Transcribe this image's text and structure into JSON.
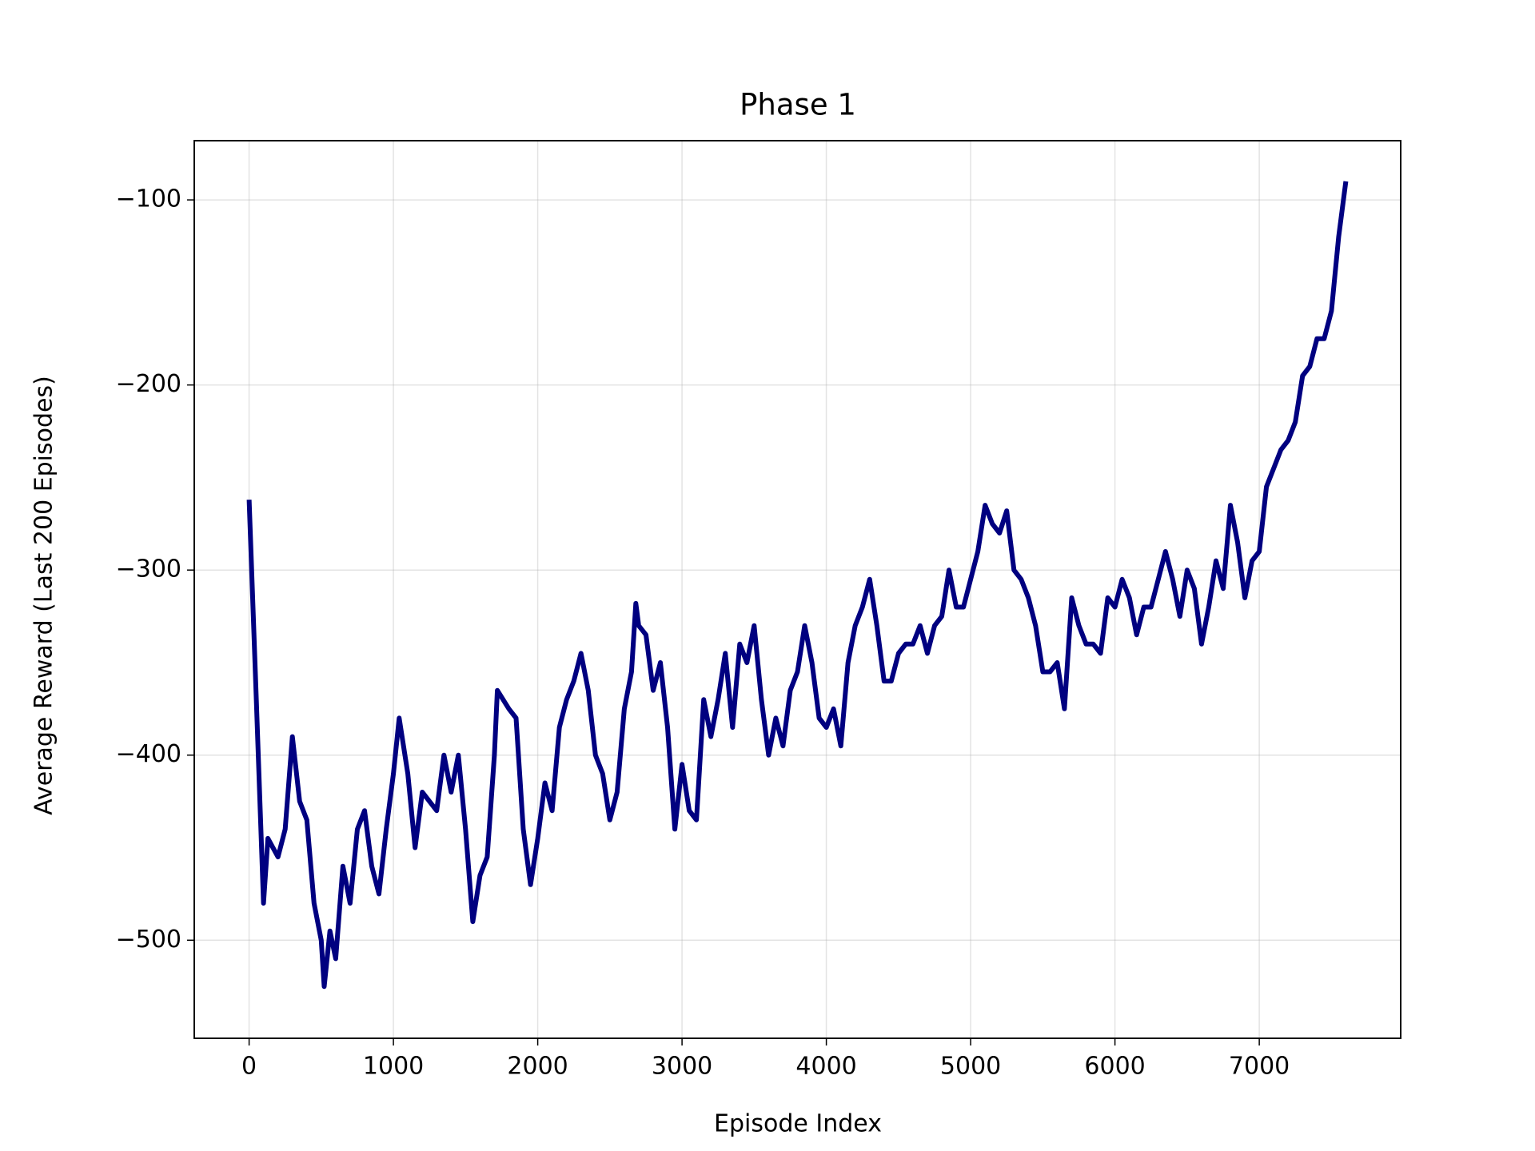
{
  "chart_data": {
    "type": "line",
    "title": "Phase 1",
    "x_label": "Episode Index",
    "y_label": "Average Reward (Last 200 Episodes)",
    "color": "#000080",
    "grid": true,
    "xlim": [
      -380,
      7980
    ],
    "xticks": [
      0,
      1000,
      2000,
      3000,
      4000,
      5000,
      6000,
      7000
    ],
    "ylim": [
      -553,
      -68
    ],
    "yticks": [
      {
        "value": -500,
        "label": "−500"
      },
      {
        "value": -400,
        "label": "−400"
      },
      {
        "value": -300,
        "label": "−300"
      },
      {
        "value": -200,
        "label": "−200"
      },
      {
        "value": -100,
        "label": "−100"
      }
    ],
    "x": [
      0,
      50,
      100,
      130,
      200,
      250,
      300,
      350,
      400,
      450,
      500,
      520,
      560,
      600,
      650,
      700,
      750,
      800,
      850,
      900,
      950,
      1000,
      1040,
      1100,
      1150,
      1200,
      1300,
      1350,
      1400,
      1450,
      1500,
      1550,
      1600,
      1650,
      1700,
      1720,
      1800,
      1850,
      1900,
      1950,
      2000,
      2050,
      2100,
      2150,
      2200,
      2250,
      2300,
      2350,
      2400,
      2450,
      2500,
      2550,
      2600,
      2650,
      2680,
      2700,
      2750,
      2800,
      2850,
      2900,
      2950,
      3000,
      3050,
      3100,
      3150,
      3200,
      3250,
      3300,
      3350,
      3400,
      3450,
      3500,
      3550,
      3600,
      3650,
      3700,
      3750,
      3800,
      3850,
      3900,
      3950,
      4000,
      4050,
      4100,
      4150,
      4200,
      4250,
      4300,
      4350,
      4400,
      4450,
      4500,
      4550,
      4600,
      4650,
      4700,
      4750,
      4800,
      4850,
      4900,
      4950,
      5000,
      5050,
      5100,
      5150,
      5200,
      5250,
      5300,
      5350,
      5400,
      5450,
      5500,
      5550,
      5600,
      5650,
      5700,
      5750,
      5800,
      5850,
      5900,
      5950,
      6000,
      6050,
      6100,
      6150,
      6200,
      6250,
      6300,
      6350,
      6400,
      6450,
      6500,
      6550,
      6600,
      6650,
      6700,
      6750,
      6800,
      6850,
      6900,
      6950,
      7000,
      7050,
      7100,
      7150,
      7200,
      7250,
      7300,
      7350,
      7400,
      7450,
      7500,
      7550,
      7600
    ],
    "values": [
      -262,
      -370,
      -480,
      -445,
      -455,
      -440,
      -390,
      -425,
      -435,
      -480,
      -500,
      -525,
      -495,
      -510,
      -460,
      -480,
      -440,
      -430,
      -460,
      -475,
      -440,
      -410,
      -380,
      -410,
      -450,
      -420,
      -430,
      -400,
      -420,
      -400,
      -440,
      -490,
      -465,
      -455,
      -400,
      -365,
      -375,
      -380,
      -440,
      -470,
      -445,
      -415,
      -430,
      -385,
      -370,
      -360,
      -345,
      -365,
      -400,
      -410,
      -435,
      -420,
      -375,
      -355,
      -318,
      -330,
      -335,
      -365,
      -350,
      -385,
      -440,
      -405,
      -430,
      -435,
      -370,
      -390,
      -370,
      -345,
      -385,
      -340,
      -350,
      -330,
      -370,
      -400,
      -380,
      -395,
      -365,
      -355,
      -330,
      -350,
      -380,
      -385,
      -375,
      -395,
      -350,
      -330,
      -320,
      -305,
      -330,
      -360,
      -360,
      -345,
      -340,
      -340,
      -330,
      -345,
      -330,
      -325,
      -300,
      -320,
      -320,
      -305,
      -290,
      -265,
      -275,
      -280,
      -268,
      -300,
      -305,
      -315,
      -330,
      -355,
      -355,
      -350,
      -375,
      -315,
      -330,
      -340,
      -340,
      -345,
      -315,
      -320,
      -305,
      -315,
      -335,
      -320,
      -320,
      -305,
      -290,
      -305,
      -325,
      -300,
      -310,
      -340,
      -320,
      -295,
      -310,
      -265,
      -285,
      -315,
      -295,
      -290,
      -255,
      -245,
      -235,
      -230,
      -220,
      -195,
      -190,
      -175,
      -175,
      -160,
      -120,
      -90
    ]
  }
}
